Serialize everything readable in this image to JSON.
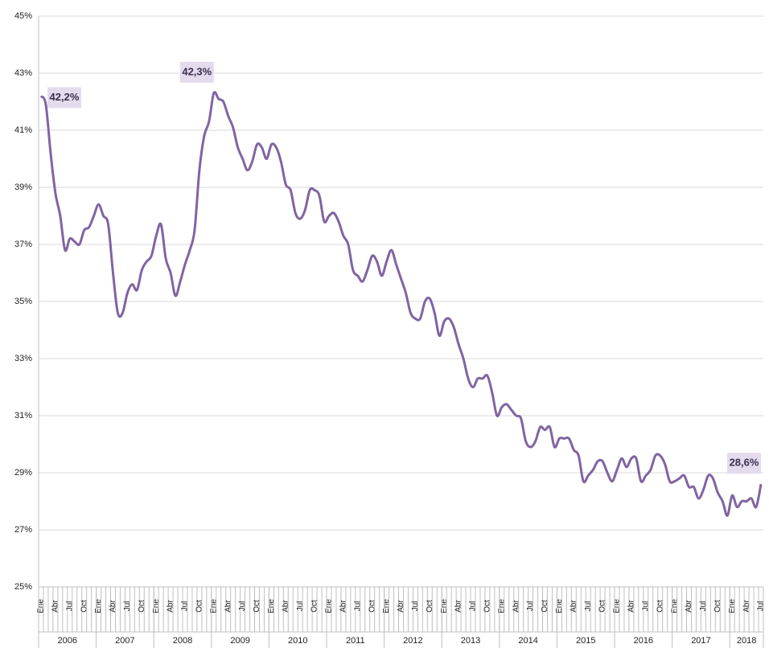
{
  "chart_data": {
    "type": "line",
    "categories": [
      "Ene",
      null,
      null,
      "Abr",
      null,
      null,
      "Jul",
      null,
      null,
      "Oct",
      null,
      null,
      "Ene",
      null,
      null,
      "Abr",
      null,
      null,
      "Jul",
      null,
      null,
      "Oct",
      null,
      null,
      "Ene",
      null,
      null,
      "Abr",
      null,
      null,
      "Jul",
      null,
      null,
      "Oct",
      null,
      null,
      "Ene",
      null,
      null,
      "Abr",
      null,
      null,
      "Jul",
      null,
      null,
      "Oct",
      null,
      null,
      "Ene",
      null,
      null,
      "Abr",
      null,
      null,
      "Jul",
      null,
      null,
      "Oct",
      null,
      null,
      "Ene",
      null,
      null,
      "Abr",
      null,
      null,
      "Jul",
      null,
      null,
      "Oct",
      null,
      null,
      "Ene",
      null,
      null,
      "Abr",
      null,
      null,
      "Jul",
      null,
      null,
      "Oct",
      null,
      null,
      "Ene",
      null,
      null,
      "Abr",
      null,
      null,
      "Jul",
      null,
      null,
      "Oct",
      null,
      null,
      "Ene",
      null,
      null,
      "Abr",
      null,
      null,
      "Jul",
      null,
      null,
      "Oct",
      null,
      null,
      "Ene",
      null,
      null,
      "Abr",
      null,
      null,
      "Jul",
      null,
      null,
      "Oct",
      null,
      null,
      "Ene",
      null,
      null,
      "Abr",
      null,
      null,
      "Jul",
      null,
      null,
      "Oct",
      null,
      null,
      "Ene",
      null,
      null,
      "Abr",
      null,
      null,
      "Jul",
      null,
      null,
      "Oct",
      null,
      null,
      "Ene",
      null,
      null,
      "Abr",
      null,
      null,
      "Jul"
    ],
    "years": [
      "2006",
      "2007",
      "2008",
      "2009",
      "2010",
      "2011",
      "2012",
      "2013",
      "2014",
      "2015",
      "2016",
      "2017",
      "2018"
    ],
    "values": [
      42.2,
      41.9,
      40.2,
      38.8,
      38.0,
      36.8,
      37.2,
      37.1,
      37.0,
      37.5,
      37.6,
      38.0,
      38.4,
      38.0,
      37.7,
      36.0,
      34.6,
      34.6,
      35.3,
      35.6,
      35.4,
      36.1,
      36.4,
      36.6,
      37.3,
      37.7,
      36.5,
      36.0,
      35.2,
      35.7,
      36.3,
      36.8,
      37.5,
      39.6,
      40.8,
      41.3,
      42.3,
      42.1,
      42.0,
      41.5,
      41.1,
      40.4,
      40.0,
      39.6,
      39.9,
      40.5,
      40.4,
      40.0,
      40.5,
      40.4,
      39.9,
      39.1,
      38.9,
      38.1,
      37.9,
      38.2,
      38.9,
      38.9,
      38.7,
      37.8,
      38.0,
      38.1,
      37.8,
      37.3,
      37.0,
      36.1,
      35.9,
      35.7,
      36.1,
      36.6,
      36.4,
      35.9,
      36.4,
      36.8,
      36.3,
      35.8,
      35.3,
      34.6,
      34.4,
      34.4,
      35.0,
      35.1,
      34.6,
      33.8,
      34.3,
      34.4,
      34.1,
      33.5,
      33.0,
      32.3,
      32.0,
      32.3,
      32.3,
      32.4,
      31.8,
      31.0,
      31.3,
      31.4,
      31.2,
      31.0,
      30.9,
      30.1,
      29.9,
      30.1,
      30.6,
      30.5,
      30.6,
      29.9,
      30.2,
      30.2,
      30.2,
      29.8,
      29.6,
      28.7,
      28.9,
      29.1,
      29.4,
      29.4,
      29.0,
      28.7,
      29.1,
      29.5,
      29.2,
      29.5,
      29.5,
      28.7,
      28.9,
      29.1,
      29.6,
      29.6,
      29.3,
      28.7,
      28.7,
      28.8,
      28.9,
      28.5,
      28.5,
      28.1,
      28.4,
      28.9,
      28.8,
      28.3,
      28.0,
      27.5,
      28.2,
      27.8,
      28.0,
      28.0,
      28.1,
      27.8,
      28.6
    ],
    "value_labels": [
      "42,2%",
      null,
      null,
      null,
      null,
      null,
      null,
      null,
      null,
      null,
      null,
      null,
      null,
      null,
      null,
      null,
      null,
      null,
      null,
      null,
      null,
      null,
      null,
      null,
      null,
      null,
      null,
      null,
      null,
      null,
      null,
      null,
      null,
      null,
      null,
      null,
      "42,3%",
      null,
      null,
      null,
      null,
      null,
      null,
      null,
      null,
      null,
      null,
      null,
      null,
      null,
      null,
      null,
      null,
      null,
      null,
      null,
      null,
      null,
      null,
      null,
      null,
      null,
      null,
      null,
      null,
      null,
      null,
      null,
      null,
      null,
      null,
      null,
      null,
      null,
      null,
      null,
      null,
      null,
      null,
      null,
      null,
      null,
      null,
      null,
      null,
      null,
      null,
      null,
      null,
      null,
      null,
      null,
      null,
      null,
      null,
      null,
      null,
      null,
      null,
      null,
      null,
      null,
      null,
      null,
      null,
      null,
      null,
      null,
      null,
      null,
      null,
      null,
      null,
      null,
      null,
      null,
      null,
      null,
      null,
      null,
      null,
      null,
      null,
      null,
      null,
      null,
      null,
      null,
      null,
      null,
      null,
      null,
      null,
      null,
      null,
      null,
      null,
      null,
      null,
      null,
      null,
      null,
      null,
      null,
      null,
      null,
      null,
      null,
      null,
      null,
      "28,6%"
    ],
    "color": "#8064a2",
    "ylim": [
      25,
      45
    ],
    "yticks": [
      {
        "value": 25,
        "label": "25%"
      },
      {
        "value": 27,
        "label": "27%"
      },
      {
        "value": 29,
        "label": "29%"
      },
      {
        "value": 31,
        "label": "31%"
      },
      {
        "value": 33,
        "label": "33%"
      },
      {
        "value": 35,
        "label": "35%"
      },
      {
        "value": 37,
        "label": "37%"
      },
      {
        "value": 39,
        "label": "39%"
      },
      {
        "value": 41,
        "label": "41%"
      },
      {
        "value": 43,
        "label": "43%"
      },
      {
        "value": 45,
        "label": "45%"
      }
    ],
    "grid": true
  }
}
